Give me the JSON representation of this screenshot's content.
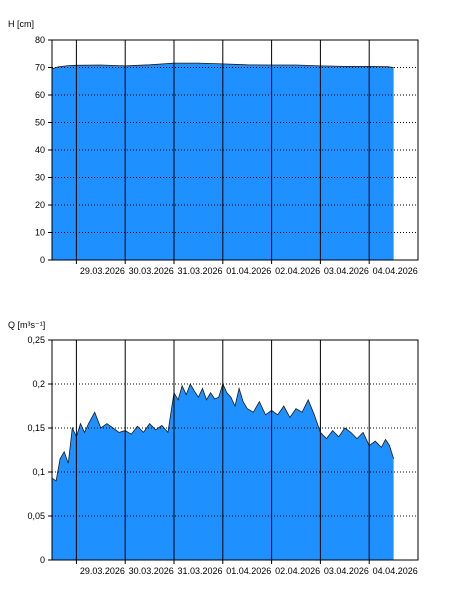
{
  "chart_data": [
    {
      "type": "area",
      "ylabel": "H [cm]",
      "ylim": [
        0,
        80
      ],
      "yticks": [
        {
          "value": 0,
          "label": "0"
        },
        {
          "value": 10,
          "label": "10"
        },
        {
          "value": 20,
          "label": "20"
        },
        {
          "value": 30,
          "label": "30"
        },
        {
          "value": 40,
          "label": "40"
        },
        {
          "value": 50,
          "label": "50"
        },
        {
          "value": 60,
          "label": "60"
        },
        {
          "value": 70,
          "label": "70"
        },
        {
          "value": 80,
          "label": "80"
        }
      ],
      "xlim": [
        "2026-03-28 12:00",
        "2026-04-05 00:00"
      ],
      "xticks": [
        {
          "x": "2026-03-29",
          "label": "29.03.2026"
        },
        {
          "x": "2026-03-30",
          "label": "30.03.2026"
        },
        {
          "x": "2026-03-31",
          "label": "31.03.2026"
        },
        {
          "x": "2026-04-01",
          "label": "01.04.2026"
        },
        {
          "x": "2026-04-02",
          "label": "02.04.2026"
        },
        {
          "x": "2026-04-03",
          "label": "03.04.2026"
        },
        {
          "x": "2026-04-04",
          "label": "04.04.2026"
        }
      ],
      "grid": {
        "horizontal": "dotted",
        "vertical": "solid"
      },
      "series": [
        {
          "color": "#1e90ff",
          "x": [
            "2026-03-28 12:00",
            "2026-03-28 15:00",
            "2026-03-28 20:00",
            "2026-03-29 00:00",
            "2026-03-29 12:00",
            "2026-03-30 00:00",
            "2026-03-30 12:00",
            "2026-03-31 00:00",
            "2026-03-31 12:00",
            "2026-04-01 00:00",
            "2026-04-01 12:00",
            "2026-04-02 00:00",
            "2026-04-02 12:00",
            "2026-04-03 00:00",
            "2026-04-03 12:00",
            "2026-04-04 00:00",
            "2026-04-04 09:00",
            "2026-04-04 12:00"
          ],
          "y": [
            69.5,
            70.2,
            70.7,
            70.8,
            70.9,
            70.6,
            71.0,
            71.6,
            71.6,
            71.3,
            71.0,
            70.9,
            70.9,
            70.6,
            70.4,
            70.4,
            70.3,
            70.0
          ]
        }
      ]
    },
    {
      "type": "area",
      "ylabel": "Q [m³s⁻¹]",
      "ylim": [
        0,
        0.25
      ],
      "yticks": [
        {
          "value": 0,
          "label": "0"
        },
        {
          "value": 0.05,
          "label": "0,05"
        },
        {
          "value": 0.1,
          "label": "0,1"
        },
        {
          "value": 0.15,
          "label": "0,15"
        },
        {
          "value": 0.2,
          "label": "0,2"
        },
        {
          "value": 0.25,
          "label": "0,25"
        }
      ],
      "xlim": [
        "2026-03-28 12:00",
        "2026-04-05 00:00"
      ],
      "xticks": [
        {
          "x": "2026-03-29",
          "label": "29.03.2026"
        },
        {
          "x": "2026-03-30",
          "label": "30.03.2026"
        },
        {
          "x": "2026-03-31",
          "label": "31.03.2026"
        },
        {
          "x": "2026-04-01",
          "label": "01.04.2026"
        },
        {
          "x": "2026-04-02",
          "label": "02.04.2026"
        },
        {
          "x": "2026-04-03",
          "label": "03.04.2026"
        },
        {
          "x": "2026-04-04",
          "label": "04.04.2026"
        }
      ],
      "grid": {
        "horizontal": "dotted",
        "vertical": "solid"
      },
      "series": [
        {
          "color": "#1e90ff",
          "x": [
            "2026-03-28 12:00",
            "2026-03-28 14:00",
            "2026-03-28 16:00",
            "2026-03-28 18:00",
            "2026-03-28 20:00",
            "2026-03-28 22:00",
            "2026-03-29 00:00",
            "2026-03-29 02:00",
            "2026-03-29 04:00",
            "2026-03-29 06:00",
            "2026-03-29 09:00",
            "2026-03-29 12:00",
            "2026-03-29 15:00",
            "2026-03-29 18:00",
            "2026-03-29 21:00",
            "2026-03-30 00:00",
            "2026-03-30 03:00",
            "2026-03-30 06:00",
            "2026-03-30 09:00",
            "2026-03-30 12:00",
            "2026-03-30 15:00",
            "2026-03-30 18:00",
            "2026-03-30 21:00",
            "2026-03-31 00:00",
            "2026-03-31 02:00",
            "2026-03-31 04:00",
            "2026-03-31 06:00",
            "2026-03-31 08:00",
            "2026-03-31 10:00",
            "2026-03-31 12:00",
            "2026-03-31 14:00",
            "2026-03-31 16:00",
            "2026-03-31 18:00",
            "2026-03-31 20:00",
            "2026-03-31 22:00",
            "2026-04-01 00:00",
            "2026-04-01 02:00",
            "2026-04-01 04:00",
            "2026-04-01 06:00",
            "2026-04-01 08:00",
            "2026-04-01 10:00",
            "2026-04-01 12:00",
            "2026-04-01 15:00",
            "2026-04-01 18:00",
            "2026-04-01 21:00",
            "2026-04-02 00:00",
            "2026-04-02 03:00",
            "2026-04-02 06:00",
            "2026-04-02 09:00",
            "2026-04-02 12:00",
            "2026-04-02 15:00",
            "2026-04-02 18:00",
            "2026-04-02 21:00",
            "2026-04-03 00:00",
            "2026-04-03 03:00",
            "2026-04-03 06:00",
            "2026-04-03 09:00",
            "2026-04-03 12:00",
            "2026-04-03 15:00",
            "2026-04-03 18:00",
            "2026-04-03 21:00",
            "2026-04-04 00:00",
            "2026-04-04 03:00",
            "2026-04-04 06:00",
            "2026-04-04 08:00",
            "2026-04-04 10:00",
            "2026-04-04 12:00"
          ],
          "y": [
            0.093,
            0.09,
            0.115,
            0.123,
            0.11,
            0.15,
            0.14,
            0.155,
            0.145,
            0.155,
            0.168,
            0.15,
            0.155,
            0.15,
            0.145,
            0.147,
            0.143,
            0.152,
            0.145,
            0.155,
            0.148,
            0.153,
            0.145,
            0.19,
            0.182,
            0.198,
            0.188,
            0.2,
            0.192,
            0.185,
            0.195,
            0.182,
            0.19,
            0.183,
            0.185,
            0.2,
            0.19,
            0.185,
            0.175,
            0.195,
            0.18,
            0.172,
            0.168,
            0.18,
            0.165,
            0.17,
            0.165,
            0.175,
            0.162,
            0.172,
            0.168,
            0.182,
            0.165,
            0.145,
            0.138,
            0.147,
            0.14,
            0.15,
            0.145,
            0.138,
            0.145,
            0.13,
            0.135,
            0.128,
            0.137,
            0.13,
            0.115
          ]
        }
      ]
    }
  ]
}
